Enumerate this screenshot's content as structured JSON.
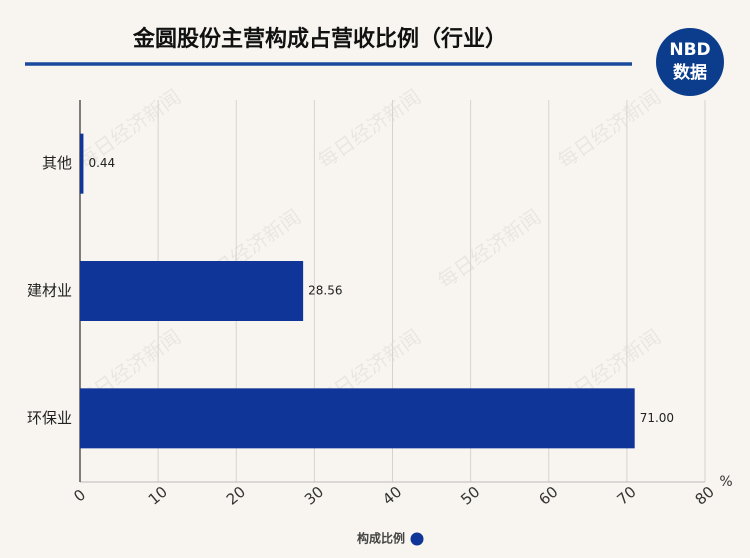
{
  "chart_data": {
    "type": "bar",
    "orientation": "horizontal",
    "title": "金圆股份主营构成占营收比例（行业）",
    "categories": [
      "其他",
      "建材业",
      "环保业"
    ],
    "series": [
      {
        "name": "构成比例",
        "color": "#0e3597",
        "values": [
          0.44,
          28.56,
          71
        ],
        "value_labels": [
          "0.44",
          "28.56",
          "71.00"
        ]
      }
    ],
    "xlim": [
      0,
      80
    ],
    "xticks": [
      0,
      10,
      20,
      30,
      40,
      50,
      60,
      70,
      80
    ],
    "x_unit": "%",
    "grid": true,
    "legend": "bottom"
  },
  "logo": {
    "top": "NBD",
    "bottom": "数据"
  },
  "watermark": "每日经济新闻"
}
